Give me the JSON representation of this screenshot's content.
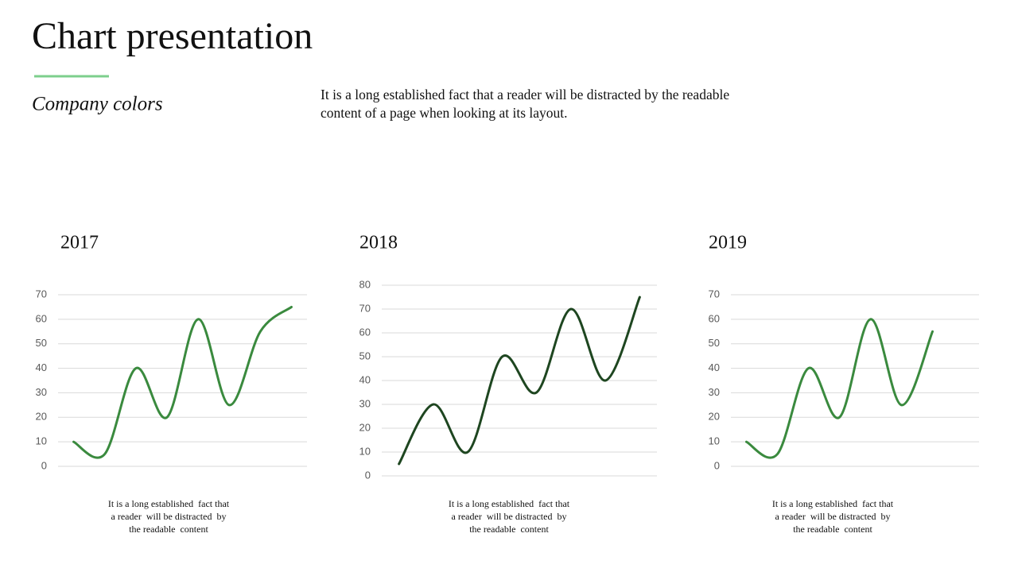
{
  "title": "Chart presentation",
  "subtitle": "Company colors",
  "description": [
    "It is a long established fact that a reader will be distracted by the readable",
    "content of a page when looking at its layout."
  ],
  "chart_data": [
    {
      "type": "line",
      "title": "2017",
      "values": [
        10,
        5,
        40,
        20,
        60,
        25,
        55,
        65
      ],
      "color": "#3a8a3e",
      "ylim": [
        0,
        70
      ],
      "yticks": [
        0,
        10,
        20,
        30,
        40,
        50,
        60,
        70
      ],
      "grid": true,
      "caption": [
        "It is a long established  fact that",
        "a reader  will be distracted  by",
        "the readable  content"
      ]
    },
    {
      "type": "line",
      "title": "2018",
      "values": [
        5,
        30,
        10,
        50,
        35,
        70,
        40,
        75
      ],
      "color": "#1e4620",
      "ylim": [
        0,
        80
      ],
      "yticks": [
        0,
        10,
        20,
        30,
        40,
        50,
        60,
        70,
        80
      ],
      "grid": true,
      "caption": [
        "It is a long established  fact that",
        "a reader  will be distracted  by",
        "the readable  content"
      ]
    },
    {
      "type": "line",
      "title": "2019",
      "values": [
        10,
        5,
        40,
        20,
        60,
        25,
        55
      ],
      "color": "#3a8a3e",
      "ylim": [
        0,
        70
      ],
      "yticks": [
        0,
        10,
        20,
        30,
        40,
        50,
        60,
        70
      ],
      "grid": true,
      "caption": [
        "It is a long established  fact that",
        "a reader  will be distracted  by",
        "the readable  content"
      ]
    }
  ]
}
